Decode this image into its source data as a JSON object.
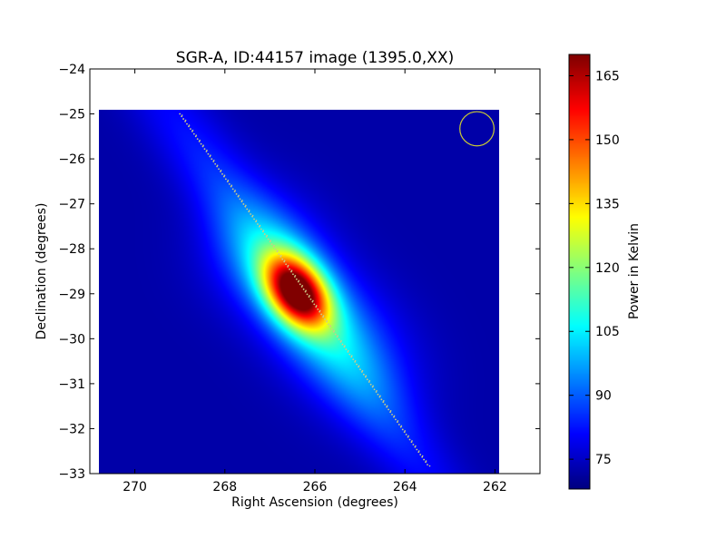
{
  "chart_data": {
    "type": "heatmap",
    "title": "SGR-A, ID:44157 image (1395.0,XX)",
    "xlabel": "Right Ascension (degrees)",
    "ylabel": "Declination (degrees)",
    "xlim": [
      271,
      261
    ],
    "ylim": [
      -33,
      -24
    ],
    "x_ticks": [
      {
        "value": 270,
        "label": "270"
      },
      {
        "value": 268,
        "label": "268"
      },
      {
        "value": 266,
        "label": "266"
      },
      {
        "value": 264,
        "label": "264"
      },
      {
        "value": 262,
        "label": "262"
      }
    ],
    "y_ticks": [
      {
        "value": -24,
        "label": "−24"
      },
      {
        "value": -25,
        "label": "−25"
      },
      {
        "value": -26,
        "label": "−26"
      },
      {
        "value": -27,
        "label": "−27"
      },
      {
        "value": -28,
        "label": "−28"
      },
      {
        "value": -29,
        "label": "−29"
      },
      {
        "value": -30,
        "label": "−30"
      },
      {
        "value": -31,
        "label": "−31"
      },
      {
        "value": -32,
        "label": "−32"
      },
      {
        "value": -33,
        "label": "−33"
      }
    ],
    "image_extent": {
      "ra": [
        270.8,
        261.9
      ],
      "dec": [
        -33.0,
        -24.9
      ]
    },
    "background_level": 72,
    "sources": [
      {
        "ra": 266.4,
        "dec": -28.95,
        "peak": 168
      },
      {
        "ra": 266.4,
        "dec": -29.0,
        "peak": 18
      },
      {
        "ra": 267.3,
        "dec": -28.0,
        "peak": 8
      },
      {
        "ra": 265.3,
        "dec": -30.0,
        "peak": 8
      },
      {
        "ra": 264.6,
        "dec": -31.0,
        "peak": 6
      }
    ],
    "galactic_plane": {
      "start": {
        "ra": 269.0,
        "dec": -25.0
      },
      "end": {
        "ra": 263.5,
        "dec": -32.8
      },
      "color": "#cccc88"
    },
    "beam_marker": {
      "ra": 262.4,
      "dec": -25.33,
      "radius_deg": 0.38,
      "color": "#cccc33"
    },
    "colorbar": {
      "label": "Power in Kelvin",
      "range": [
        68,
        170
      ],
      "ticks": [
        {
          "value": 75,
          "label": "75"
        },
        {
          "value": 90,
          "label": "90"
        },
        {
          "value": 105,
          "label": "105"
        },
        {
          "value": 120,
          "label": "120"
        },
        {
          "value": 135,
          "label": "135"
        },
        {
          "value": 150,
          "label": "150"
        },
        {
          "value": 165,
          "label": "165"
        }
      ],
      "colormap": "jet"
    }
  }
}
